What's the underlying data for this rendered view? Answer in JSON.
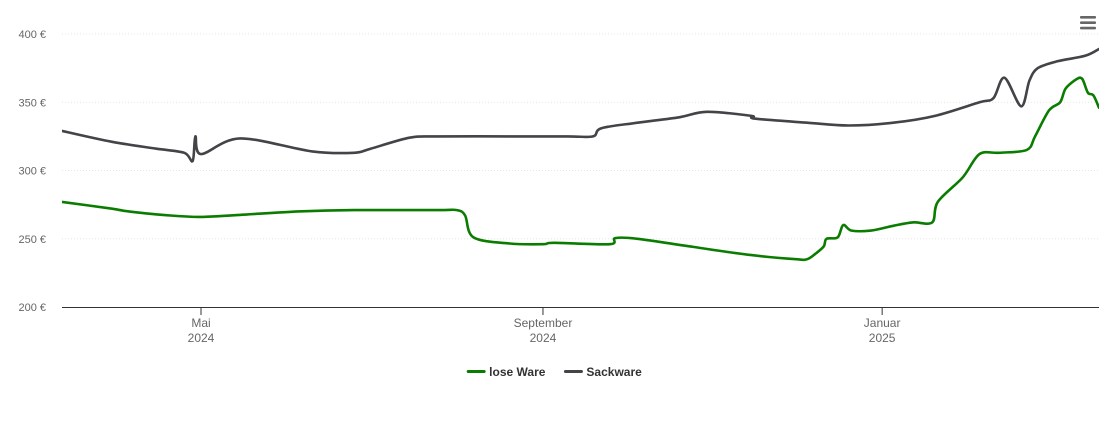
{
  "chart_data": {
    "type": "line",
    "y_unit_suffix": " €",
    "ylim": [
      200,
      400
    ],
    "y_ticks": [
      200,
      250,
      300,
      350,
      400
    ],
    "y_tick_labels": [
      "200 €",
      "250 €",
      "300 €",
      "350 €",
      "400 €"
    ],
    "x_range": [
      "2024-03-12",
      "2025-03-20"
    ],
    "x_ticks": [
      {
        "date": "2024-05-01",
        "month": "Mai",
        "year": "2024"
      },
      {
        "date": "2024-09-01",
        "month": "September",
        "year": "2024"
      },
      {
        "date": "2025-01-01",
        "month": "Januar",
        "year": "2025"
      }
    ],
    "grid": "horizontal",
    "legend": "bottom-center",
    "series": [
      {
        "name": "lose Ware",
        "color": "#0a7d00",
        "points": [
          [
            "2024-03-12",
            277
          ],
          [
            "2024-03-30",
            272
          ],
          [
            "2024-04-20",
            267
          ],
          [
            "2024-04-05",
            270
          ],
          [
            "2024-05-01",
            266
          ],
          [
            "2024-05-15",
            267.5
          ],
          [
            "2024-06-05",
            270
          ],
          [
            "2024-06-25",
            271
          ],
          [
            "2024-07-25",
            271
          ],
          [
            "2024-08-01",
            271
          ],
          [
            "2024-08-04",
            267
          ],
          [
            "2024-08-07",
            251
          ],
          [
            "2024-08-20",
            246.5
          ],
          [
            "2024-09-01",
            246
          ],
          [
            "2024-09-05",
            247
          ],
          [
            "2024-09-25",
            246
          ],
          [
            "2024-09-27",
            250.5
          ],
          [
            "2024-10-05",
            250
          ],
          [
            "2024-10-25",
            244
          ],
          [
            "2024-11-15",
            238
          ],
          [
            "2024-12-01",
            235
          ],
          [
            "2024-12-05",
            235
          ],
          [
            "2024-12-08",
            239
          ],
          [
            "2024-12-11",
            244.5
          ],
          [
            "2024-12-12",
            250
          ],
          [
            "2024-12-16",
            251
          ],
          [
            "2024-12-18",
            260
          ],
          [
            "2024-12-21",
            256
          ],
          [
            "2024-12-28",
            256
          ],
          [
            "2025-01-05",
            259.5
          ],
          [
            "2025-01-12",
            262
          ],
          [
            "2025-01-19",
            262
          ],
          [
            "2025-01-21",
            277
          ],
          [
            "2025-01-30",
            295
          ],
          [
            "2025-02-05",
            312
          ],
          [
            "2025-02-12",
            313
          ],
          [
            "2025-02-22",
            315
          ],
          [
            "2025-02-25",
            325
          ],
          [
            "2025-03-02",
            344
          ],
          [
            "2025-03-06",
            350
          ],
          [
            "2025-03-08",
            360
          ],
          [
            "2025-03-12",
            367
          ],
          [
            "2025-03-14",
            367
          ],
          [
            "2025-03-16",
            357
          ],
          [
            "2025-03-18",
            355
          ],
          [
            "2025-03-20",
            346
          ]
        ]
      },
      {
        "name": "Sackware",
        "color": "#434348",
        "points": [
          [
            "2024-03-12",
            329
          ],
          [
            "2024-03-30",
            321
          ],
          [
            "2024-04-15",
            316
          ],
          [
            "2024-05-01",
            312
          ],
          [
            "2024-04-25",
            313
          ],
          [
            "2024-04-28",
            307
          ],
          [
            "2024-04-29",
            325
          ],
          [
            "2024-05-15",
            323.5
          ],
          [
            "2024-06-10",
            314
          ],
          [
            "2024-06-25",
            313
          ],
          [
            "2024-07-01",
            316
          ],
          [
            "2024-07-15",
            324
          ],
          [
            "2024-07-25",
            325
          ],
          [
            "2024-08-20",
            325
          ],
          [
            "2024-09-10",
            325
          ],
          [
            "2024-09-19",
            325
          ],
          [
            "2024-09-22",
            331
          ],
          [
            "2024-10-05",
            335
          ],
          [
            "2024-10-20",
            339
          ],
          [
            "2024-10-30",
            343
          ],
          [
            "2024-11-15",
            340
          ],
          [
            "2024-11-16",
            338
          ],
          [
            "2024-12-05",
            335
          ],
          [
            "2024-12-20",
            333
          ],
          [
            "2025-01-05",
            335
          ],
          [
            "2025-01-20",
            340
          ],
          [
            "2025-02-05",
            350
          ],
          [
            "2025-02-10",
            353
          ],
          [
            "2025-02-14",
            368
          ],
          [
            "2025-02-20",
            347
          ],
          [
            "2025-02-23",
            366
          ],
          [
            "2025-02-26",
            375
          ],
          [
            "2025-03-05",
            380
          ],
          [
            "2025-03-15",
            384
          ],
          [
            "2025-03-20",
            389
          ]
        ]
      }
    ]
  },
  "menu": {
    "icon": "hamburger-menu-icon"
  }
}
